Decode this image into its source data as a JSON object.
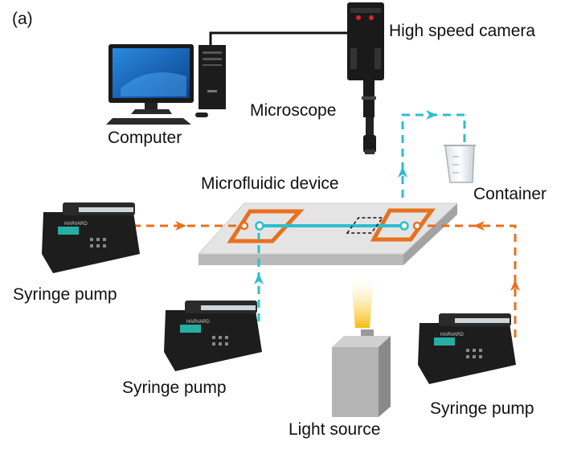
{
  "panel_label": "(a)",
  "labels": {
    "camera": "High speed camera",
    "microscope": "Microscope",
    "computer": "Computer",
    "device": "Microfluidic device",
    "container": "Container",
    "pump_left": "Syringe pump",
    "pump_middle": "Syringe pump",
    "pump_right": "Syringe pump",
    "light_source": "Light source"
  },
  "pump_brand": "HARVARD",
  "colors": {
    "orange_flow": "#e8701e",
    "cyan_flow": "#2bbfcf",
    "platform": "#dcdcdc",
    "light_beam": "#f5b800"
  }
}
